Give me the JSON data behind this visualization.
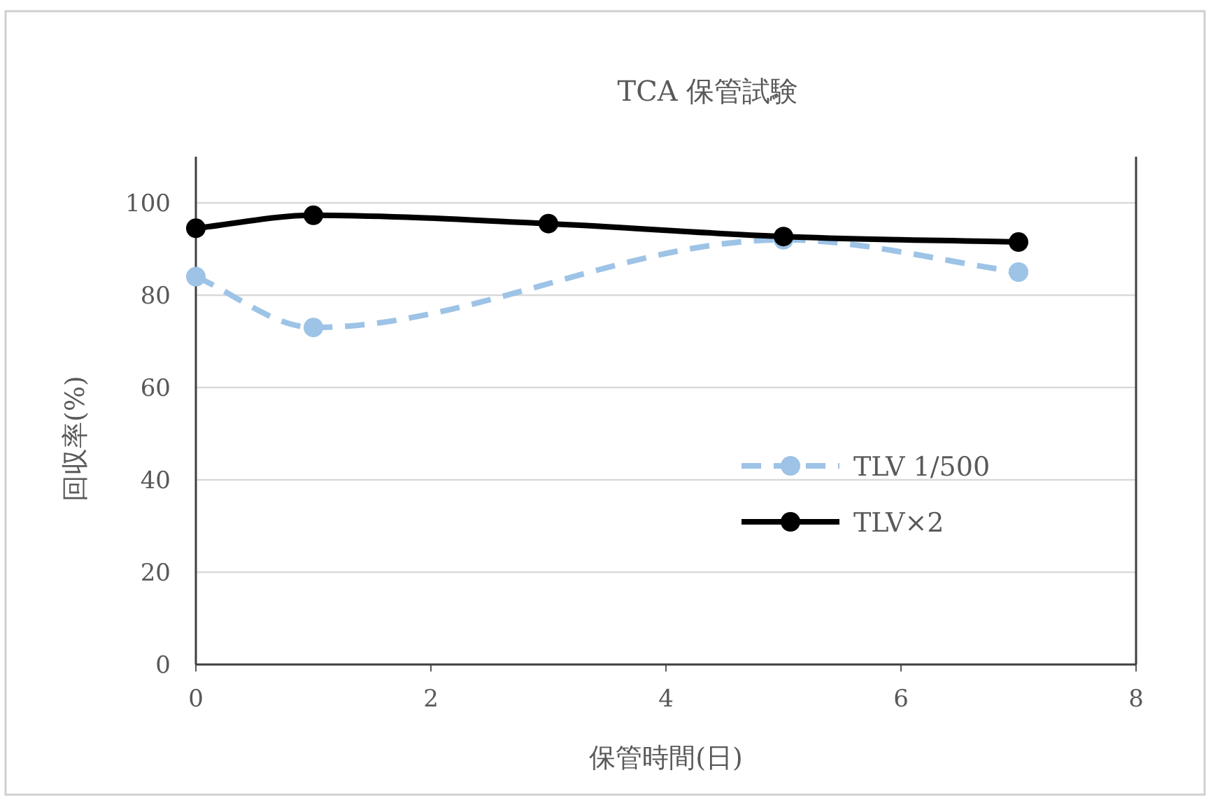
{
  "chart_data": {
    "type": "line",
    "title": "TCA 保管試験",
    "xlabel": "保管時間(日)",
    "ylabel": "回収率(%)",
    "xlim": [
      0,
      8
    ],
    "xticks": [
      0,
      2,
      4,
      6,
      8
    ],
    "ylim": [
      0,
      110
    ],
    "yticks": [
      0,
      20,
      40,
      60,
      80,
      100
    ],
    "grid": "y",
    "legend": "right",
    "marker": "circle",
    "series": [
      {
        "name": "TLV 1/500",
        "color": "#9dc3e6",
        "line_style": "dashed",
        "x": [
          0,
          1,
          5,
          7
        ],
        "values": [
          84,
          73,
          92,
          85
        ]
      },
      {
        "name": "TLV×2",
        "color": "#000000",
        "line_style": "solid",
        "x": [
          0,
          1,
          3,
          5,
          7
        ],
        "values": [
          94.5,
          97.3,
          95.5,
          92.7,
          91.5
        ]
      }
    ]
  }
}
